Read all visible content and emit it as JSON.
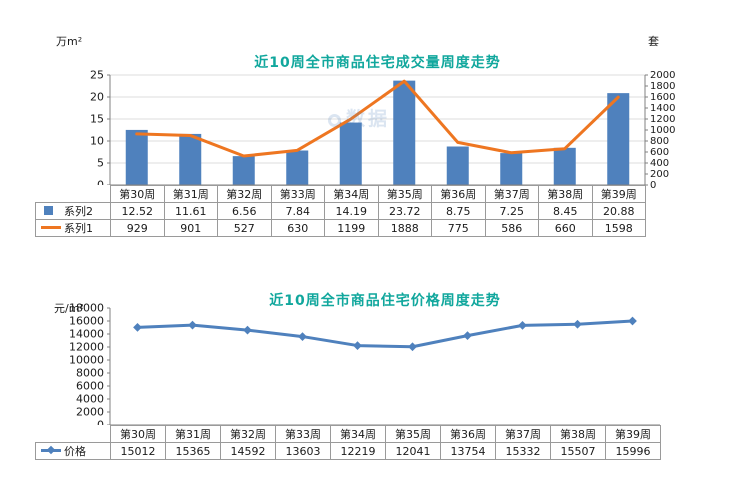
{
  "watermark": {
    "text": "数据"
  },
  "chart_data": [
    {
      "type": "bar",
      "title": "近10周全市商品住宅成交量周度走势",
      "title_color": "#11a79d",
      "left_axis_label": "万m²",
      "right_axis_label": "套",
      "categories": [
        "第30周",
        "第31周",
        "第32周",
        "第33周",
        "第34周",
        "第35周",
        "第36周",
        "第37周",
        "第38周",
        "第39周"
      ],
      "left_axis": {
        "min": 0,
        "max": 25,
        "step": 5
      },
      "right_axis": {
        "min": 0,
        "max": 2000,
        "step": 200
      },
      "grid": true,
      "legend_position": "table-left",
      "series": [
        {
          "name": "系列2",
          "type": "bar",
          "axis": "left",
          "color": "#4f81bd",
          "values": [
            12.52,
            11.61,
            6.56,
            7.84,
            14.19,
            23.72,
            8.75,
            7.25,
            8.45,
            20.88
          ]
        },
        {
          "name": "系列1",
          "type": "line",
          "axis": "right",
          "color": "#ee7621",
          "values": [
            929,
            901,
            527,
            630,
            1199,
            1888,
            775,
            586,
            660,
            1598
          ]
        }
      ]
    },
    {
      "type": "line",
      "title": "近10周全市商品住宅价格周度走势",
      "title_color": "#11a79d",
      "left_axis_label": "元/m²",
      "categories": [
        "第30周",
        "第31周",
        "第32周",
        "第33周",
        "第34周",
        "第35周",
        "第36周",
        "第37周",
        "第38周",
        "第39周"
      ],
      "left_axis": {
        "min": 0,
        "max": 18000,
        "step": 2000
      },
      "grid": false,
      "legend_position": "table-left",
      "series": [
        {
          "name": "价格",
          "type": "line",
          "axis": "left",
          "color": "#4f81bd",
          "marker": "diamond",
          "values": [
            15012,
            15365,
            14592,
            13603,
            12219,
            12041,
            13754,
            15332,
            15507,
            15996
          ]
        }
      ]
    }
  ]
}
